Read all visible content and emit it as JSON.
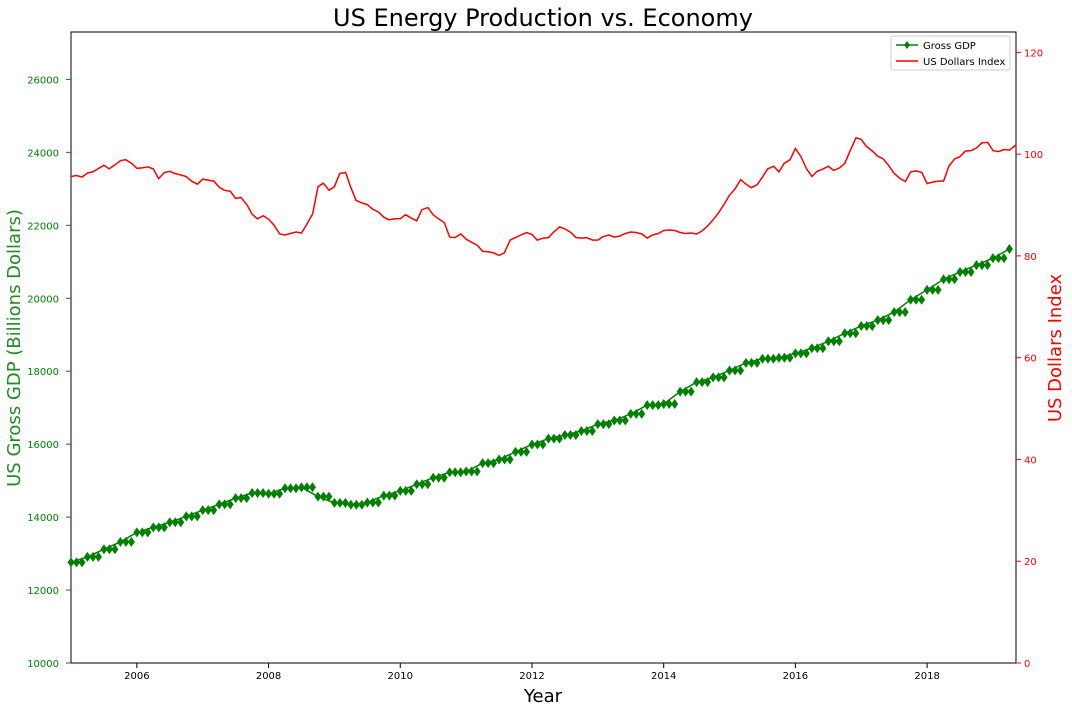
{
  "chart_data": {
    "type": "line",
    "title": "US Energy Production vs. Economy",
    "xlabel": "Year",
    "ylabel_left": "US Gross GDP (Billions Dollars)",
    "ylabel_right": "US Dollars Index",
    "xlim": [
      2005.0,
      2019.35
    ],
    "ylim_left": [
      10000,
      27300
    ],
    "ylim_right": [
      0,
      124
    ],
    "x_ticks": [
      2006,
      2008,
      2010,
      2012,
      2014,
      2016,
      2018
    ],
    "y_left_ticks": [
      10000,
      12000,
      14000,
      16000,
      18000,
      20000,
      22000,
      24000,
      26000
    ],
    "y_right_ticks": [
      0,
      20,
      40,
      60,
      80,
      100,
      120
    ],
    "grid": false,
    "legend_position": "top-right",
    "colors": {
      "gdp": "#008000",
      "usd": "#ff0000",
      "left_axis": "#008000",
      "right_axis": "#ff0000"
    },
    "series": [
      {
        "name": "Gross GDP",
        "axis": "left",
        "marker": "diamond",
        "points": [
          [
            2005.0,
            12760
          ],
          [
            2005.25,
            12910
          ],
          [
            2005.5,
            13120
          ],
          [
            2005.75,
            13320
          ],
          [
            2006.0,
            13580
          ],
          [
            2006.25,
            13720
          ],
          [
            2006.5,
            13860
          ],
          [
            2006.75,
            14020
          ],
          [
            2007.0,
            14190
          ],
          [
            2007.25,
            14350
          ],
          [
            2007.5,
            14520
          ],
          [
            2007.75,
            14660
          ],
          [
            2008.0,
            14640
          ],
          [
            2008.25,
            14790
          ],
          [
            2008.5,
            14820
          ],
          [
            2008.75,
            14560
          ],
          [
            2009.0,
            14390
          ],
          [
            2009.25,
            14340
          ],
          [
            2009.5,
            14400
          ],
          [
            2009.75,
            14590
          ],
          [
            2010.0,
            14720
          ],
          [
            2010.25,
            14900
          ],
          [
            2010.5,
            15080
          ],
          [
            2010.75,
            15230
          ],
          [
            2011.0,
            15250
          ],
          [
            2011.25,
            15480
          ],
          [
            2011.5,
            15580
          ],
          [
            2011.75,
            15790
          ],
          [
            2012.0,
            15990
          ],
          [
            2012.25,
            16150
          ],
          [
            2012.5,
            16250
          ],
          [
            2012.75,
            16360
          ],
          [
            2013.0,
            16550
          ],
          [
            2013.25,
            16650
          ],
          [
            2013.5,
            16830
          ],
          [
            2013.75,
            17070
          ],
          [
            2014.0,
            17100
          ],
          [
            2014.25,
            17440
          ],
          [
            2014.5,
            17700
          ],
          [
            2014.75,
            17830
          ],
          [
            2015.0,
            18020
          ],
          [
            2015.25,
            18230
          ],
          [
            2015.5,
            18340
          ],
          [
            2015.75,
            18370
          ],
          [
            2016.0,
            18490
          ],
          [
            2016.25,
            18630
          ],
          [
            2016.5,
            18820
          ],
          [
            2016.75,
            19040
          ],
          [
            2017.0,
            19240
          ],
          [
            2017.25,
            19400
          ],
          [
            2017.5,
            19620
          ],
          [
            2017.75,
            19960
          ],
          [
            2018.0,
            20230
          ],
          [
            2018.25,
            20520
          ],
          [
            2018.5,
            20720
          ],
          [
            2018.75,
            20910
          ],
          [
            2019.0,
            21100
          ],
          [
            2019.25,
            21350
          ]
        ]
      },
      {
        "name": "US Dollars Index",
        "axis": "right",
        "points": [
          [
            2005.0,
            95.6
          ],
          [
            2005.08,
            95.8
          ],
          [
            2005.17,
            95.5
          ],
          [
            2005.25,
            96.3
          ],
          [
            2005.33,
            96.5
          ],
          [
            2005.42,
            97.2
          ],
          [
            2005.5,
            97.8
          ],
          [
            2005.58,
            97.1
          ],
          [
            2005.67,
            97.9
          ],
          [
            2005.75,
            98.7
          ],
          [
            2005.83,
            98.9
          ],
          [
            2005.92,
            98.2
          ],
          [
            2006.0,
            97.2
          ],
          [
            2006.08,
            97.3
          ],
          [
            2006.17,
            97.5
          ],
          [
            2006.25,
            97.1
          ],
          [
            2006.33,
            95.2
          ],
          [
            2006.42,
            96.4
          ],
          [
            2006.5,
            96.6
          ],
          [
            2006.58,
            96.2
          ],
          [
            2006.67,
            95.9
          ],
          [
            2006.75,
            95.6
          ],
          [
            2006.83,
            94.7
          ],
          [
            2006.92,
            94.1
          ],
          [
            2007.0,
            95.1
          ],
          [
            2007.08,
            94.9
          ],
          [
            2007.17,
            94.7
          ],
          [
            2007.25,
            93.5
          ],
          [
            2007.33,
            92.9
          ],
          [
            2007.42,
            92.7
          ],
          [
            2007.5,
            91.3
          ],
          [
            2007.58,
            91.5
          ],
          [
            2007.67,
            90.1
          ],
          [
            2007.75,
            88.2
          ],
          [
            2007.83,
            87.3
          ],
          [
            2007.92,
            87.9
          ],
          [
            2008.0,
            87.2
          ],
          [
            2008.08,
            86.1
          ],
          [
            2008.17,
            84.3
          ],
          [
            2008.25,
            84.1
          ],
          [
            2008.33,
            84.4
          ],
          [
            2008.42,
            84.7
          ],
          [
            2008.5,
            84.5
          ],
          [
            2008.58,
            86.2
          ],
          [
            2008.67,
            88.3
          ],
          [
            2008.75,
            93.6
          ],
          [
            2008.83,
            94.3
          ],
          [
            2008.92,
            92.9
          ],
          [
            2009.0,
            93.6
          ],
          [
            2009.08,
            96.2
          ],
          [
            2009.17,
            96.4
          ],
          [
            2009.25,
            93.4
          ],
          [
            2009.33,
            90.9
          ],
          [
            2009.42,
            90.4
          ],
          [
            2009.5,
            90.1
          ],
          [
            2009.58,
            89.2
          ],
          [
            2009.67,
            88.6
          ],
          [
            2009.75,
            87.6
          ],
          [
            2009.83,
            87.1
          ],
          [
            2009.92,
            87.3
          ],
          [
            2010.0,
            87.3
          ],
          [
            2010.08,
            88.1
          ],
          [
            2010.17,
            87.4
          ],
          [
            2010.25,
            86.9
          ],
          [
            2010.33,
            89.1
          ],
          [
            2010.42,
            89.5
          ],
          [
            2010.5,
            88.1
          ],
          [
            2010.58,
            87.3
          ],
          [
            2010.67,
            86.5
          ],
          [
            2010.75,
            83.7
          ],
          [
            2010.83,
            83.6
          ],
          [
            2010.92,
            84.3
          ],
          [
            2011.0,
            83.3
          ],
          [
            2011.08,
            82.7
          ],
          [
            2011.17,
            82.1
          ],
          [
            2011.25,
            80.9
          ],
          [
            2011.33,
            80.8
          ],
          [
            2011.42,
            80.6
          ],
          [
            2011.5,
            80.1
          ],
          [
            2011.58,
            80.6
          ],
          [
            2011.67,
            83.1
          ],
          [
            2011.75,
            83.6
          ],
          [
            2011.83,
            84.1
          ],
          [
            2011.92,
            84.6
          ],
          [
            2012.0,
            84.2
          ],
          [
            2012.08,
            83.1
          ],
          [
            2012.17,
            83.5
          ],
          [
            2012.25,
            83.6
          ],
          [
            2012.33,
            84.7
          ],
          [
            2012.42,
            85.7
          ],
          [
            2012.5,
            85.3
          ],
          [
            2012.58,
            84.7
          ],
          [
            2012.67,
            83.6
          ],
          [
            2012.75,
            83.5
          ],
          [
            2012.83,
            83.6
          ],
          [
            2012.92,
            83.1
          ],
          [
            2013.0,
            83.1
          ],
          [
            2013.08,
            83.8
          ],
          [
            2013.17,
            84.1
          ],
          [
            2013.25,
            83.7
          ],
          [
            2013.33,
            83.9
          ],
          [
            2013.42,
            84.4
          ],
          [
            2013.5,
            84.7
          ],
          [
            2013.58,
            84.6
          ],
          [
            2013.67,
            84.3
          ],
          [
            2013.75,
            83.5
          ],
          [
            2013.83,
            84.1
          ],
          [
            2013.92,
            84.4
          ],
          [
            2014.0,
            85.0
          ],
          [
            2014.08,
            85.1
          ],
          [
            2014.17,
            85.0
          ],
          [
            2014.25,
            84.6
          ],
          [
            2014.33,
            84.4
          ],
          [
            2014.42,
            84.5
          ],
          [
            2014.5,
            84.3
          ],
          [
            2014.58,
            84.9
          ],
          [
            2014.67,
            85.9
          ],
          [
            2014.75,
            87.1
          ],
          [
            2014.83,
            88.4
          ],
          [
            2014.92,
            90.2
          ],
          [
            2015.0,
            91.9
          ],
          [
            2015.08,
            93.1
          ],
          [
            2015.17,
            95.0
          ],
          [
            2015.25,
            94.1
          ],
          [
            2015.33,
            93.4
          ],
          [
            2015.42,
            94.0
          ],
          [
            2015.5,
            95.5
          ],
          [
            2015.58,
            97.1
          ],
          [
            2015.67,
            97.6
          ],
          [
            2015.75,
            96.5
          ],
          [
            2015.83,
            98.2
          ],
          [
            2015.92,
            98.9
          ],
          [
            2016.0,
            101.1
          ],
          [
            2016.08,
            99.6
          ],
          [
            2016.17,
            97.1
          ],
          [
            2016.25,
            95.6
          ],
          [
            2016.33,
            96.6
          ],
          [
            2016.42,
            97.1
          ],
          [
            2016.5,
            97.6
          ],
          [
            2016.58,
            96.8
          ],
          [
            2016.67,
            97.3
          ],
          [
            2016.75,
            98.2
          ],
          [
            2016.83,
            100.6
          ],
          [
            2016.92,
            103.2
          ],
          [
            2017.0,
            102.9
          ],
          [
            2017.08,
            101.5
          ],
          [
            2017.17,
            100.6
          ],
          [
            2017.25,
            99.6
          ],
          [
            2017.33,
            99.1
          ],
          [
            2017.42,
            97.7
          ],
          [
            2017.5,
            96.2
          ],
          [
            2017.58,
            95.3
          ],
          [
            2017.67,
            94.6
          ],
          [
            2017.75,
            96.5
          ],
          [
            2017.83,
            96.7
          ],
          [
            2017.92,
            96.4
          ],
          [
            2018.0,
            94.2
          ],
          [
            2018.08,
            94.5
          ],
          [
            2018.17,
            94.7
          ],
          [
            2018.25,
            94.7
          ],
          [
            2018.33,
            97.6
          ],
          [
            2018.42,
            99.1
          ],
          [
            2018.5,
            99.5
          ],
          [
            2018.58,
            100.6
          ],
          [
            2018.67,
            100.7
          ],
          [
            2018.75,
            101.2
          ],
          [
            2018.83,
            102.2
          ],
          [
            2018.92,
            102.3
          ],
          [
            2019.0,
            100.7
          ],
          [
            2019.08,
            100.5
          ],
          [
            2019.17,
            100.9
          ],
          [
            2019.25,
            100.8
          ],
          [
            2019.35,
            101.8
          ]
        ]
      }
    ]
  }
}
